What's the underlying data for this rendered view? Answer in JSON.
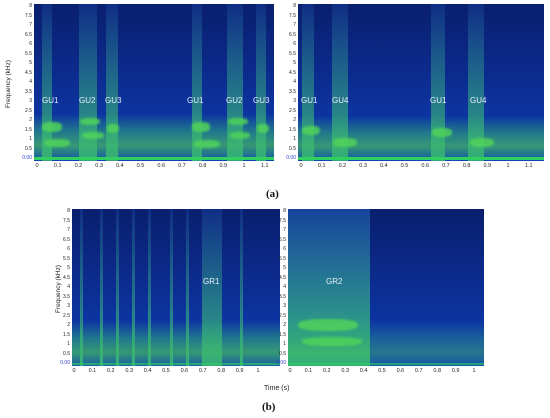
{
  "panels": {
    "a_left": {
      "labels": [
        "GU1",
        "GU2",
        "GU3",
        "GU1",
        "GU2",
        "GU3"
      ]
    },
    "a_right": {
      "labels": [
        "GU1",
        "GU4",
        "GU1",
        "GU4"
      ]
    },
    "b_left": {
      "labels": [
        "GR1"
      ]
    },
    "b_right": {
      "labels": [
        "GR2"
      ]
    }
  },
  "axes": {
    "freq_ticks_a": [
      "8",
      "7.5",
      "7",
      "6.5",
      "6",
      "5.5",
      "5",
      "4.5",
      "4",
      "3.5",
      "3",
      "2.5",
      "2",
      "1.5",
      "1",
      "0.5",
      "0.00"
    ],
    "freq_ticks_b": [
      "8",
      "7.5",
      "7",
      "6.5",
      "6",
      "5.5",
      "5",
      "4.5",
      "4",
      "3.5",
      "3",
      "2.5",
      "2",
      "1.5",
      "1",
      "0.5",
      "0.00"
    ],
    "x_ticks_a_left": [
      "0",
      "0.1",
      "0.2",
      "0.3",
      "0.4",
      "0.5",
      "0.6",
      "0.7",
      "0.8",
      "0.9",
      "1",
      "1.1"
    ],
    "x_ticks_a_right": [
      "0",
      "0.1",
      "0.2",
      "0.3",
      "0.4",
      "0.5",
      "0.6",
      "0.7",
      "0.8",
      "0.9",
      "1",
      "1.1"
    ],
    "x_ticks_b_left": [
      "0",
      "0.1",
      "0.2",
      "0.3",
      "0.4",
      "0.5",
      "0.6",
      "0.7",
      "0.8",
      "0.9",
      "1"
    ],
    "x_ticks_b_right": [
      "0",
      "0.1",
      "0.2",
      "0.3",
      "0.4",
      "0.5",
      "0.6",
      "0.7",
      "0.8",
      "0.9",
      "1"
    ],
    "y_title": "Frequency (kHz)",
    "x_title": "Time (s)"
  },
  "captions": {
    "a": "(a)",
    "b": "(b)"
  }
}
